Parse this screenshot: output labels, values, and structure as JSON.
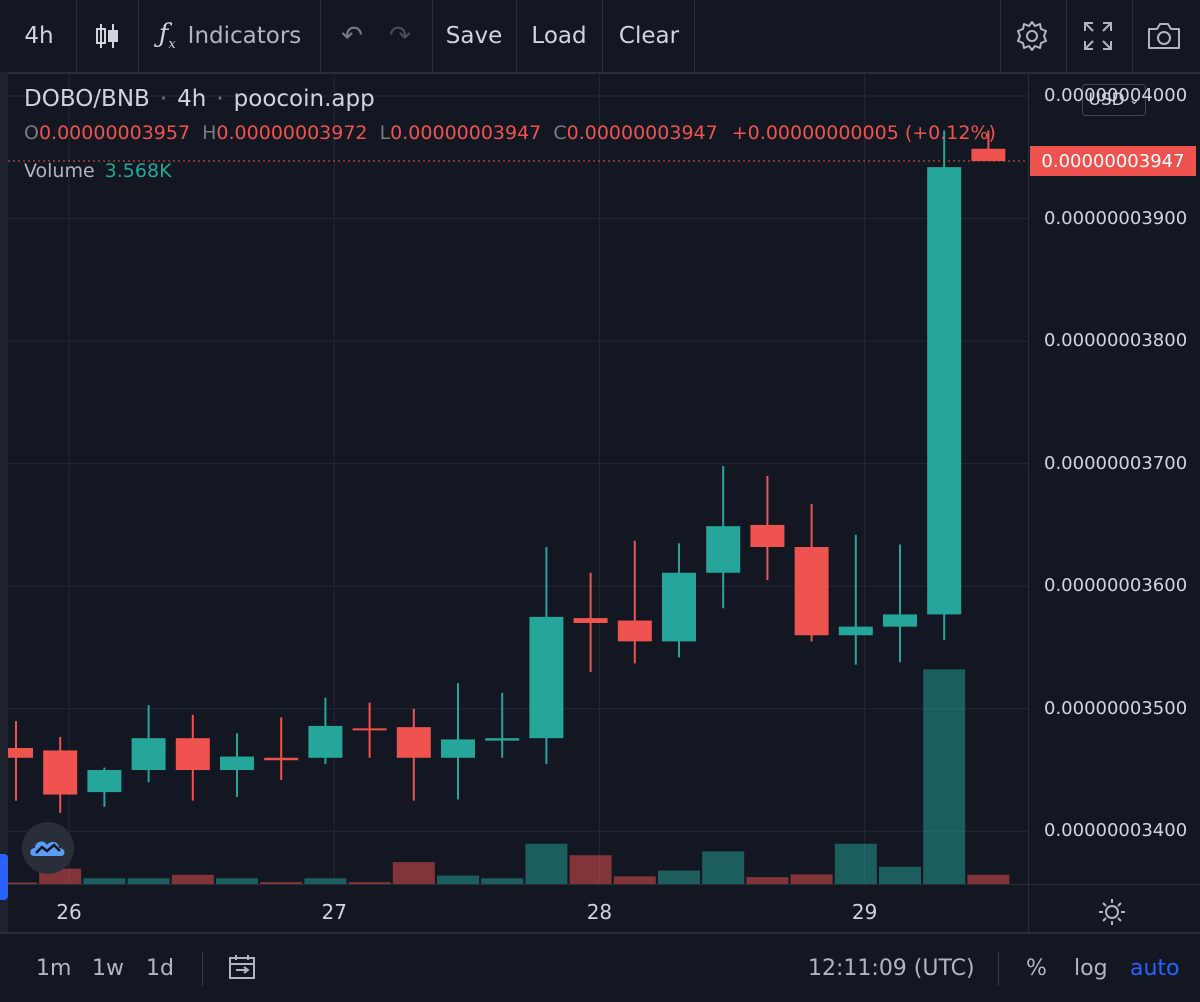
{
  "toolbar": {
    "interval": "4h",
    "indicators_label": "Indicators",
    "save_label": "Save",
    "load_label": "Load",
    "clear_label": "Clear"
  },
  "legend": {
    "symbol": "DOBO/BNB",
    "interval": "4h",
    "source": "poocoin.app",
    "o_label": "O",
    "o_value": "0.00000003957",
    "h_label": "H",
    "h_value": "0.00000003972",
    "l_label": "L",
    "l_value": "0.00000003947",
    "c_label": "C",
    "c_value": "0.00000003947",
    "change": "+0.00000000005 (+0.12%)",
    "volume_label": "Volume",
    "volume_value": "3.568K"
  },
  "currency_button": "USD",
  "current_price": "0.00000003947",
  "bottombar": {
    "ranges": [
      "1m",
      "1w",
      "1d"
    ],
    "time": "12:11:09 (UTC)",
    "percent_label": "%",
    "log_label": "log",
    "auto_label": "auto"
  },
  "colors": {
    "up": "#26a69a",
    "down": "#ef5350",
    "background": "#131722",
    "grid": "#242832"
  },
  "chart_data": {
    "type": "candlestick",
    "y_tick_labels": [
      "0.00000004000",
      "0.00000003900",
      "0.00000003800",
      "0.00000003700",
      "0.00000003600",
      "0.00000003500",
      "0.00000003400"
    ],
    "y_ticks": [
      4000,
      3900,
      3800,
      3700,
      3600,
      3500,
      3400
    ],
    "y_unit_note": "values ×1e-11",
    "ylim": [
      3357,
      4018
    ],
    "x_tick_labels": [
      "26",
      "27",
      "28",
      "29"
    ],
    "x_tick_positions": [
      1.2,
      7.2,
      13.2,
      19.2
    ],
    "candles": [
      {
        "o": 3468,
        "h": 3490,
        "l": 3425,
        "c": 3460
      },
      {
        "o": 3466,
        "h": 3477,
        "l": 3415,
        "c": 3430
      },
      {
        "o": 3432,
        "h": 3452,
        "l": 3420,
        "c": 3450
      },
      {
        "o": 3450,
        "h": 3503,
        "l": 3440,
        "c": 3476
      },
      {
        "o": 3476,
        "h": 3495,
        "l": 3425,
        "c": 3450
      },
      {
        "o": 3450,
        "h": 3480,
        "l": 3428,
        "c": 3461
      },
      {
        "o": 3460,
        "h": 3493,
        "l": 3442,
        "c": 3458
      },
      {
        "o": 3460,
        "h": 3509,
        "l": 3455,
        "c": 3486
      },
      {
        "o": 3484,
        "h": 3505,
        "l": 3460,
        "c": 3483
      },
      {
        "o": 3485,
        "h": 3500,
        "l": 3425,
        "c": 3460
      },
      {
        "o": 3460,
        "h": 3521,
        "l": 3426,
        "c": 3475
      },
      {
        "o": 3474,
        "h": 3513,
        "l": 3460,
        "c": 3476
      },
      {
        "o": 3476,
        "h": 3632,
        "l": 3455,
        "c": 3575
      },
      {
        "o": 3574,
        "h": 3611,
        "l": 3530,
        "c": 3570
      },
      {
        "o": 3572,
        "h": 3637,
        "l": 3537,
        "c": 3555
      },
      {
        "o": 3555,
        "h": 3635,
        "l": 3542,
        "c": 3611
      },
      {
        "o": 3611,
        "h": 3698,
        "l": 3582,
        "c": 3649
      },
      {
        "o": 3650,
        "h": 3690,
        "l": 3605,
        "c": 3632
      },
      {
        "o": 3632,
        "h": 3667,
        "l": 3555,
        "c": 3560
      },
      {
        "o": 3560,
        "h": 3642,
        "l": 3536,
        "c": 3567
      },
      {
        "o": 3567,
        "h": 3634,
        "l": 3538,
        "c": 3577
      },
      {
        "o": 3577,
        "h": 3972,
        "l": 3556,
        "c": 3942
      },
      {
        "o": 3957,
        "h": 3972,
        "l": 3947,
        "c": 3947
      }
    ],
    "volumes": [
      4,
      40,
      15,
      15,
      24,
      15,
      5,
      15,
      5,
      57,
      22,
      15,
      105,
      75,
      20,
      35,
      85,
      18,
      25,
      105,
      45,
      560,
      24
    ],
    "volume_max": 560,
    "volume_panel_height_fraction": 0.265
  }
}
